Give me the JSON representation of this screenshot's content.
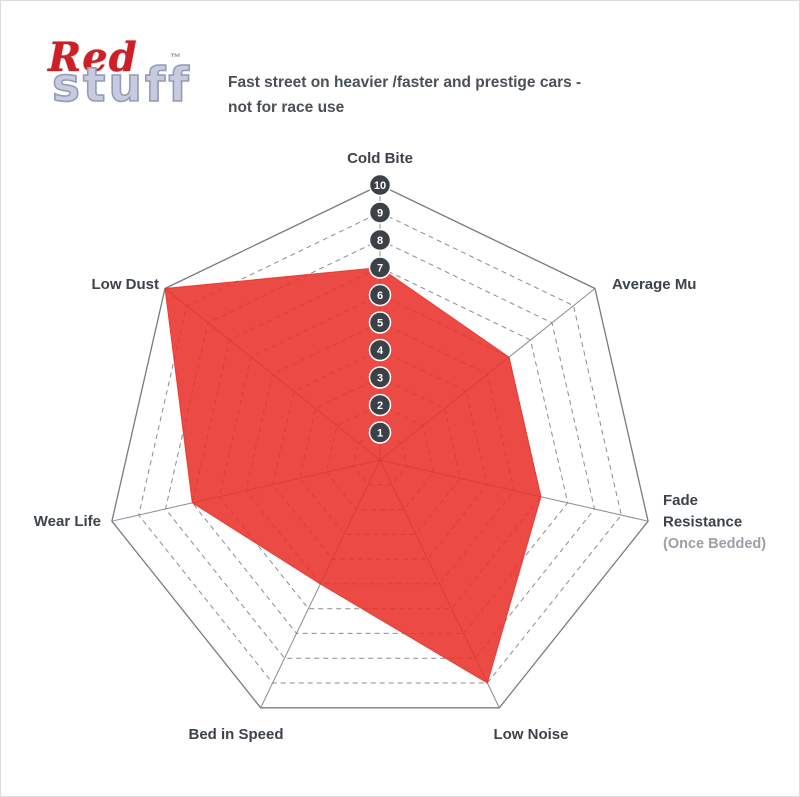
{
  "logo": {
    "red": "Red",
    "stuff": "stuff",
    "tm": "™"
  },
  "description": {
    "line1": "Fast street on heavier /faster and prestige cars -",
    "line2": "not for race use"
  },
  "chart_data": {
    "type": "radar",
    "categories": [
      "Cold Bite",
      "Average Mu",
      "Fade Resistance (Once Bedded)",
      "Low Noise",
      "Bed in Speed",
      "Wear Life",
      "Low Dust"
    ],
    "axis_label_lines": [
      [
        "Cold Bite"
      ],
      [
        "Average Mu"
      ],
      [
        "Fade",
        "Resistance",
        "(Once Bedded)"
      ],
      [
        "Low Noise"
      ],
      [
        "Bed in Speed"
      ],
      [
        "Wear Life"
      ],
      [
        "Low Dust"
      ]
    ],
    "series": [
      {
        "name": "RedStuff",
        "values": [
          7,
          6,
          6,
          9,
          5,
          7,
          10
        ]
      }
    ],
    "scale": {
      "min": 0,
      "max": 10,
      "tick_labels": [
        "10",
        "9",
        "8",
        "7",
        "6",
        "5",
        "4",
        "3",
        "2",
        "1"
      ]
    },
    "grid": {
      "rings": "dashed",
      "outer_ring": "solid",
      "spokes": "solid"
    },
    "legend": "none",
    "colors": {
      "fill": "#e8322a",
      "fill_opacity": 0.88,
      "grid": "#878c95",
      "outer": "#767b83",
      "badge": "#3c4147",
      "badge_ring": "#ffffff",
      "badge_text": "#ffffff",
      "label": "#3d434b",
      "sublabel": "#9aa0a8"
    }
  }
}
